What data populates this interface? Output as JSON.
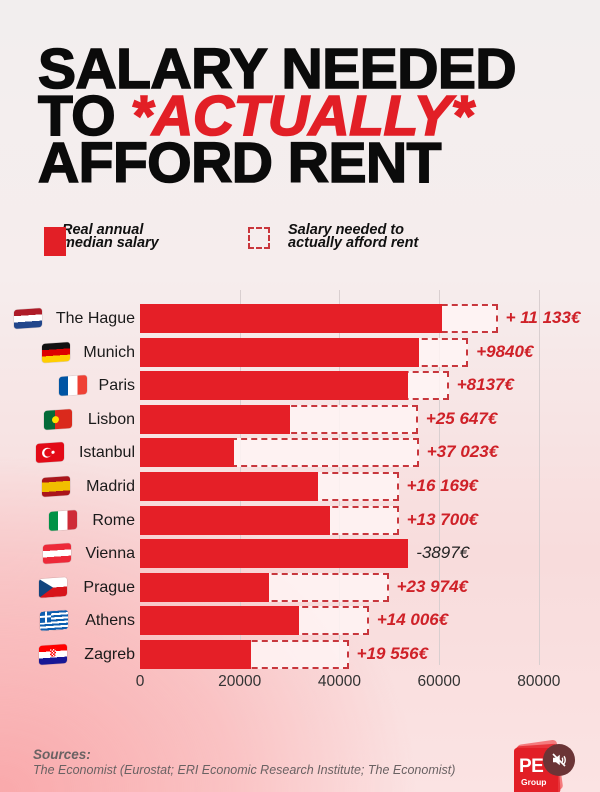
{
  "title": {
    "line1": "SALARY NEEDED",
    "line2_prefix": "TO ",
    "line2_accent": "*ACTUALLY*",
    "line3": "AFFORD RENT"
  },
  "legend": {
    "solid_label": "Real annual median salary",
    "dashed_label": "Salary needed to actually afford rent"
  },
  "colors": {
    "accent": "#e21f26",
    "dashed_border": "#c8373d",
    "text": "#0b0b0b"
  },
  "sources": {
    "label": "Sources:",
    "text": "The Economist (Eurostat; ERI Economic Research Institute; The Economist)"
  },
  "logo": {
    "mark": "PE",
    "sub": "Group"
  },
  "media_control": {
    "icon": "mute-icon"
  },
  "chart_data": {
    "type": "bar",
    "orientation": "horizontal",
    "title": "Salary needed to *actually* afford rent",
    "xlabel": "",
    "ylabel": "",
    "xlim": [
      0,
      90000
    ],
    "x_ticks": [
      "0",
      "20000",
      "40000",
      "60000",
      "80000"
    ],
    "x_tick_values": [
      0,
      20000,
      40000,
      60000,
      80000
    ],
    "grid": true,
    "legend": [
      "Real annual median salary",
      "Salary needed to actually afford rent"
    ],
    "categories": [
      "The Hague",
      "Munich",
      "Paris",
      "Lisbon",
      "Istanbul",
      "Madrid",
      "Rome",
      "Vienna",
      "Prague",
      "Athens",
      "Zagreb"
    ],
    "flags": [
      "Netherlands",
      "Germany",
      "France",
      "Portugal",
      "Turkey",
      "Spain",
      "Italy",
      "Austria",
      "Czechia",
      "Greece",
      "Croatia"
    ],
    "series": [
      {
        "name": "Real annual median salary",
        "values": [
          60600,
          56000,
          53800,
          30100,
          18900,
          35700,
          38200,
          53800,
          25900,
          31900,
          22300
        ]
      },
      {
        "name": "Salary needed to actually afford rent",
        "values": [
          71733,
          65840,
          61937,
          55747,
          55923,
          51869,
          51900,
          49903,
          49874,
          45906,
          41856
        ]
      }
    ],
    "annotations": [
      "+ 11 133€",
      "+9840€",
      "+8137€",
      "+25 647€",
      "+37 023€",
      "+16 169€",
      "+13 700€",
      "-3897€",
      "+23 974€",
      "+14 006€",
      "+19 556€"
    ]
  }
}
